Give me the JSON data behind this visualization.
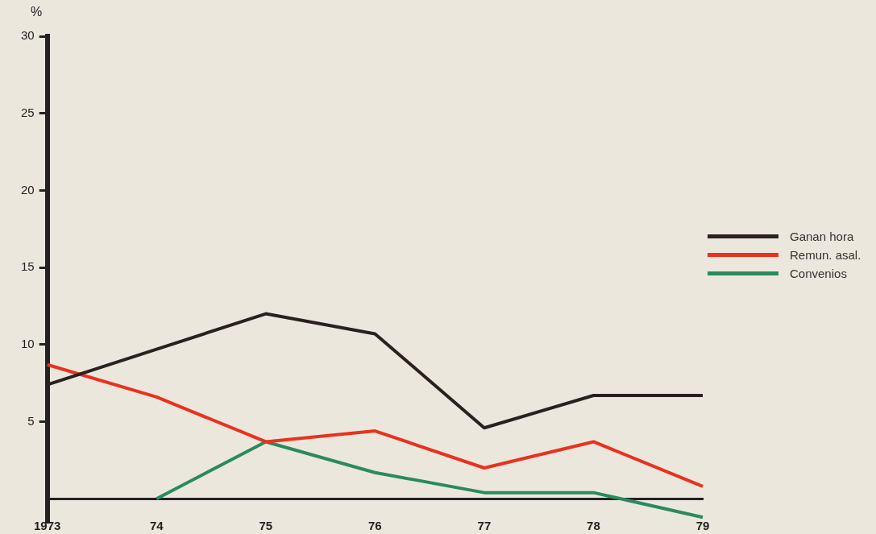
{
  "chart_data": {
    "type": "line",
    "ylabel": "%",
    "categories": [
      "1973",
      "74",
      "75",
      "76",
      "77",
      "78",
      "79"
    ],
    "series": [
      {
        "name": "Ganan hora",
        "color": "#2a2020",
        "values": [
          7.4,
          9.7,
          12,
          10.7,
          4.6,
          6.7,
          6.7
        ]
      },
      {
        "name": "Remun. asal.",
        "color": "#e8321e",
        "values": [
          8.7,
          6.6,
          3.7,
          4.4,
          2.0,
          3.7,
          0.8
        ]
      },
      {
        "name": "Convenios",
        "color": "#2a8a5e",
        "values": [
          null,
          0,
          3.7,
          1.7,
          0.4,
          0.4,
          -1.2
        ]
      }
    ],
    "ylim": [
      -1.5,
      30
    ],
    "yticks": [
      5,
      10,
      15,
      20,
      25,
      30
    ],
    "grid": false,
    "legend": "right",
    "marker": "none",
    "line_style": "solid"
  }
}
